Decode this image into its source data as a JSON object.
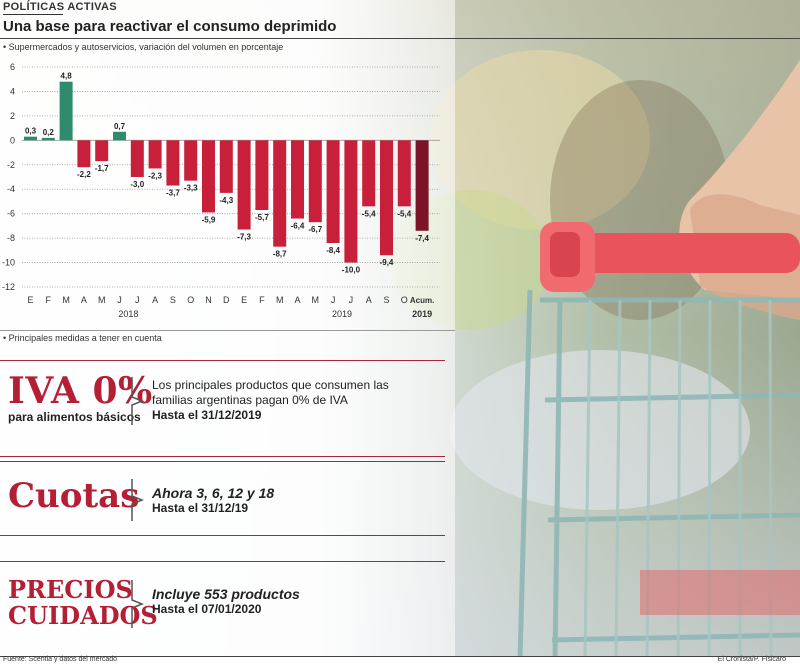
{
  "header": {
    "kicker": "POLÍTICAS ACTIVAS",
    "title": "Una base para reactivar el consumo deprimido",
    "subtitle": "• Supermercados y autoservicios, variación del volumen en porcentaje"
  },
  "colors": {
    "positive": "#2e8b6e",
    "negative": "#c8203a",
    "accumulated": "#7a1426",
    "accent": "#b51f35"
  },
  "chart_data": {
    "type": "bar",
    "categories": [
      "E",
      "F",
      "M",
      "A",
      "M",
      "J",
      "J",
      "A",
      "S",
      "O",
      "N",
      "D",
      "E",
      "F",
      "M",
      "A",
      "M",
      "J",
      "J",
      "A",
      "S",
      "O",
      "Acum."
    ],
    "year_labels": [
      "2018",
      "2019",
      "2019"
    ],
    "values": [
      0.3,
      0.2,
      4.8,
      -2.2,
      -1.7,
      0.7,
      -3.0,
      -2.3,
      -3.7,
      -3.3,
      -5.9,
      -4.3,
      -7.3,
      -5.7,
      -8.7,
      -6.4,
      -6.7,
      -8.4,
      -10.0,
      -5.4,
      -9.4,
      -5.4,
      -7.4
    ],
    "value_labels": [
      "0,3",
      "0,2",
      "4,8",
      "-2,2",
      "-1,7",
      "0,7",
      "-3,0",
      "-2,3",
      "-3,7",
      "-3,3",
      "-5,9",
      "-4,3",
      "-7,3",
      "-5,7",
      "-8,7",
      "-6,4",
      "-6,7",
      "-8,4",
      "-10,0",
      "-5,4",
      "-9,4",
      "-5,4",
      "-7,4"
    ],
    "yticks": [
      6,
      4,
      2,
      0,
      -2,
      -4,
      -6,
      -8,
      -10,
      -12
    ],
    "ylim": [
      -12,
      6
    ],
    "grid": true
  },
  "measures_note": "• Principales medidas a tener en cuenta",
  "measures": [
    {
      "big": "IVA 0%",
      "small": "para alimentos básicos",
      "line1": "Los principales productos que consumen las",
      "line2": "familias argentinas pagan 0% de IVA",
      "line3": "Hasta el 31/12/2019"
    },
    {
      "big": "Cuotas",
      "line1": "Ahora 3, 6, 12 y 18",
      "line2": "Hasta el 31/12/19"
    },
    {
      "big1": "PRECIOS",
      "big2": "CUIDADOS",
      "line1": "Incluye 553 productos",
      "line2": "Hasta el 07/01/2020"
    }
  ],
  "footer": {
    "source": "Fuente: Scentia y datos del mercado",
    "credit": "El Cronista/P. Fisicaro"
  }
}
